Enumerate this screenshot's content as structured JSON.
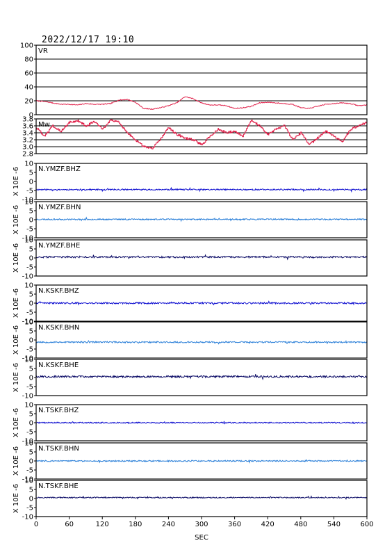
{
  "header": {
    "datetime": "2022/12/17  19:10"
  },
  "colors": {
    "vr": "#e0214a",
    "mw": "#e0214a",
    "bhz": "#1010d0",
    "bhn": "#2a7fd8",
    "bhe": "#0b0b66"
  },
  "chart_data": {
    "type": "line",
    "x_unit_label": "SEC",
    "xlim": [
      0,
      600
    ],
    "x_ticks": [
      "0",
      "60",
      "120",
      "180",
      "240",
      "300",
      "360",
      "420",
      "480",
      "540",
      "600"
    ],
    "panels": [
      {
        "name": "VR",
        "ylim": [
          0,
          100
        ],
        "y_ticks": [
          "0",
          "20",
          "40",
          "60",
          "80",
          "100"
        ],
        "grid": true,
        "color_key": "vr",
        "series_x": [
          0,
          15,
          30,
          45,
          60,
          75,
          90,
          105,
          120,
          135,
          150,
          165,
          180,
          195,
          210,
          225,
          240,
          255,
          270,
          285,
          300,
          315,
          330,
          345,
          360,
          375,
          390,
          405,
          420,
          435,
          450,
          465,
          480,
          495,
          510,
          525,
          540,
          555,
          570,
          585,
          600
        ],
        "series_y": [
          20,
          19,
          17,
          15,
          15,
          14,
          16,
          15,
          15,
          16,
          21,
          22,
          18,
          9,
          8,
          10,
          13,
          17,
          26,
          23,
          17,
          14,
          14,
          13,
          9,
          10,
          12,
          17,
          18,
          17,
          16,
          15,
          10,
          9,
          12,
          15,
          16,
          17,
          16,
          13,
          14
        ]
      },
      {
        "name": "Mw",
        "ylim": [
          2.8,
          3.8
        ],
        "y_ticks": [
          "2.8",
          "3.0",
          "3.2",
          "3.4",
          "3.6",
          "3.8"
        ],
        "grid": true,
        "color_key": "mw",
        "series_x": [
          0,
          15,
          30,
          45,
          60,
          75,
          90,
          105,
          120,
          135,
          150,
          165,
          180,
          195,
          210,
          225,
          240,
          255,
          270,
          285,
          300,
          315,
          330,
          345,
          360,
          375,
          390,
          405,
          420,
          435,
          450,
          465,
          480,
          495,
          510,
          525,
          540,
          555,
          570,
          585,
          600
        ],
        "series_y": [
          3.55,
          3.3,
          3.6,
          3.45,
          3.7,
          3.75,
          3.6,
          3.72,
          3.5,
          3.78,
          3.7,
          3.4,
          3.2,
          3.0,
          2.95,
          3.2,
          3.55,
          3.35,
          3.25,
          3.2,
          3.05,
          3.3,
          3.5,
          3.4,
          3.45,
          3.3,
          3.78,
          3.6,
          3.35,
          3.5,
          3.6,
          3.2,
          3.4,
          3.05,
          3.25,
          3.45,
          3.3,
          3.15,
          3.5,
          3.6,
          3.7
        ]
      },
      {
        "name": "N.YMZF.BHZ",
        "ylim": [
          -10,
          10
        ],
        "y_ticks": [
          "-10",
          "-5",
          "0",
          "5",
          "10"
        ],
        "y_label": "X 10E -6",
        "color_key": "bhz",
        "offset": -4.5,
        "amplitude": 0.35,
        "seed": 11
      },
      {
        "name": "N.YMZF.BHN",
        "ylim": [
          -10,
          10
        ],
        "y_ticks": [
          "-10",
          "-5",
          "0",
          "5",
          "10"
        ],
        "y_label": "X 10E -6",
        "color_key": "bhn",
        "offset": 0.2,
        "amplitude": 0.35,
        "seed": 23
      },
      {
        "name": "N.YMZF.BHE",
        "ylim": [
          -10,
          10
        ],
        "y_ticks": [
          "-10",
          "-5",
          "0",
          "5",
          "10"
        ],
        "y_label": "X 10E -6",
        "color_key": "bhe",
        "offset": 0.5,
        "amplitude": 0.45,
        "seed": 37
      },
      {
        "name": "N.KSKF.BHZ",
        "ylim": [
          -10,
          10
        ],
        "y_ticks": [
          "-10",
          "-5",
          "0",
          "5",
          "10"
        ],
        "y_label": "X 10E -6",
        "color_key": "bhz",
        "offset": 0.0,
        "amplitude": 0.45,
        "seed": 41
      },
      {
        "name": "N.KSKF.BHN",
        "ylim": [
          -10,
          10
        ],
        "y_ticks": [
          "-10",
          "-5",
          "0",
          "5",
          "10"
        ],
        "y_label": "X 10E -6",
        "color_key": "bhn",
        "offset": -1.2,
        "amplitude": 0.4,
        "seed": 53
      },
      {
        "name": "N.KSKF.BHE",
        "ylim": [
          -10,
          10
        ],
        "y_ticks": [
          "-10",
          "-5",
          "0",
          "5",
          "10"
        ],
        "y_label": "X 10E -6",
        "color_key": "bhe",
        "offset": 0.5,
        "amplitude": 0.5,
        "seed": 67
      },
      {
        "name": "N.TSKF.BHZ",
        "ylim": [
          -10,
          10
        ],
        "y_ticks": [
          "-10",
          "-5",
          "0",
          "5",
          "10"
        ],
        "y_label": "X 10E -6",
        "color_key": "bhz",
        "offset": 0.0,
        "amplitude": 0.3,
        "seed": 71
      },
      {
        "name": "N.TSKF.BHN",
        "ylim": [
          -10,
          10
        ],
        "y_ticks": [
          "-10",
          "-5",
          "0",
          "5",
          "10"
        ],
        "y_label": "X 10E -6",
        "color_key": "bhn",
        "offset": 0.0,
        "amplitude": 0.35,
        "seed": 83
      },
      {
        "name": "N.TSKF.BHE",
        "ylim": [
          -10,
          10
        ],
        "y_ticks": [
          "-10",
          "-5",
          "0",
          "5",
          "10"
        ],
        "y_label": "X 10E -6",
        "color_key": "bhe",
        "offset": 0.5,
        "amplitude": 0.3,
        "seed": 97
      }
    ]
  }
}
